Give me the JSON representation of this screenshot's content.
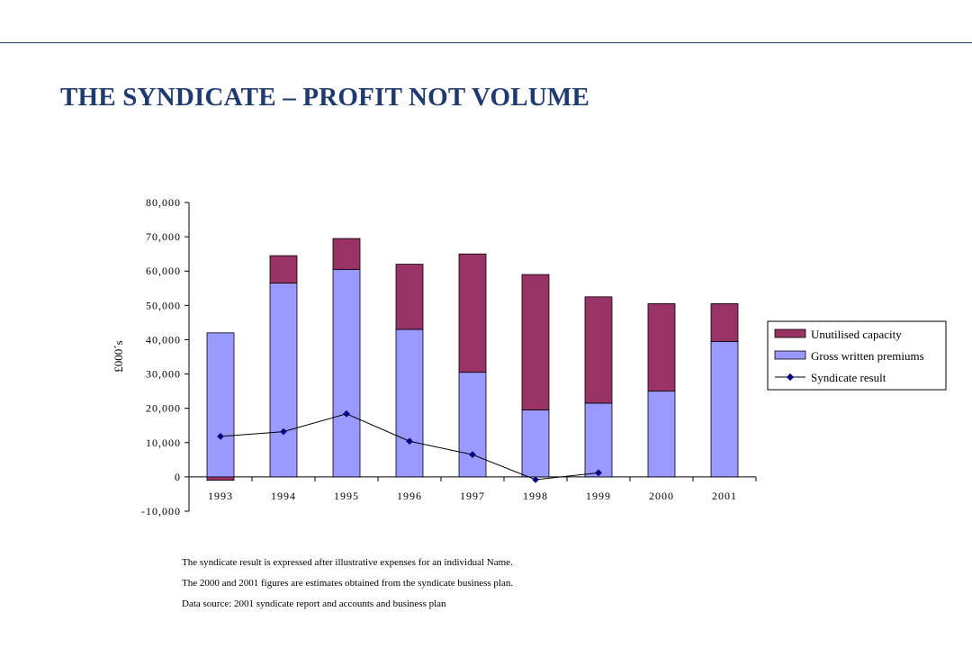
{
  "page": {
    "title": "THE SYNDICATE – PROFIT NOT VOLUME",
    "notes": [
      "The syndicate result is expressed after illustrative expenses for an individual Name.",
      "The 2000 and 2001 figures are estimates obtained from the syndicate business plan.",
      "Data source: 2001 syndicate report and accounts and business plan"
    ]
  },
  "chart_data": {
    "type": "bar",
    "stacked": true,
    "categories": [
      "1993",
      "1994",
      "1995",
      "1996",
      "1997",
      "1998",
      "1999",
      "2000",
      "2001"
    ],
    "ylabel": "£000´s",
    "xlabel": "",
    "ylim": [
      -10000,
      80000
    ],
    "yticks": [
      80000,
      70000,
      60000,
      50000,
      40000,
      30000,
      20000,
      10000,
      0,
      -10000
    ],
    "ytick_labels": [
      "80,000",
      "70,000",
      "60,000",
      "50,000",
      "40,000",
      "30,000",
      "20,000",
      "10,000",
      "0",
      "-10,000"
    ],
    "legend_position": "right",
    "series": [
      {
        "name": "Unutilised capacity",
        "kind": "bar",
        "color": "#993366",
        "values": [
          -1000,
          8000,
          9000,
          19000,
          34500,
          39500,
          31000,
          25500,
          11000
        ]
      },
      {
        "name": "Gross written premiums",
        "kind": "bar",
        "color": "#9999ff",
        "values": [
          42000,
          56500,
          60500,
          43000,
          30500,
          19500,
          21500,
          25000,
          39500
        ]
      },
      {
        "name": "Syndicate result",
        "kind": "line",
        "color": "#000080",
        "values": [
          11800,
          13200,
          18400,
          10400,
          6500,
          -800,
          1200,
          null,
          null
        ]
      }
    ]
  }
}
